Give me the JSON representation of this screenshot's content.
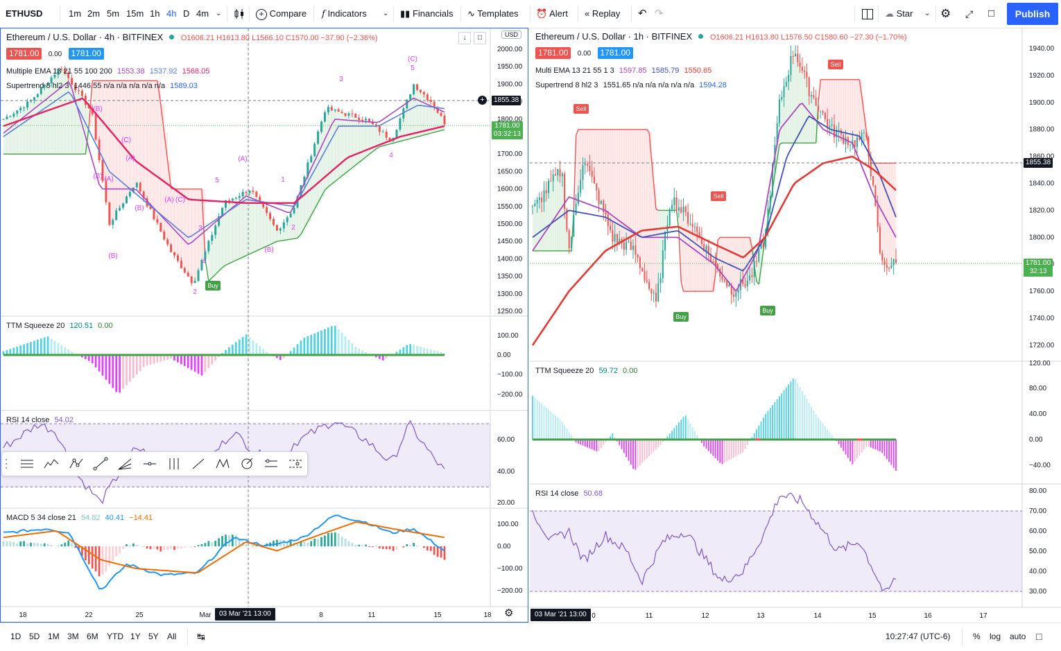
{
  "toolbar": {
    "symbol": "ETHUSD",
    "intervals": [
      "1m",
      "2m",
      "5m",
      "15m",
      "1h",
      "4h",
      "D",
      "4m"
    ],
    "active_interval": "4h",
    "compare": "Compare",
    "indicators": "Indicators",
    "financials": "Financials",
    "templates": "Templates",
    "alert": "Alert",
    "replay": "Replay",
    "star": "Star",
    "publish": "Publish"
  },
  "left_chart": {
    "title": "Ethereum / U.S. Dollar · 4h · BITFINEX",
    "ohlc": "O1606.21 H1613.80 L1566.10 C1570.00 −37.90 (−2.36%)",
    "bid": "1781.00",
    "spread": "0.00",
    "ask": "1781.00",
    "ema_label": "Multiple EMA 13 21 55 100 200",
    "ema_values": [
      "1553.38",
      "1537.92",
      "1568.05"
    ],
    "st_label": "Supertrend 8 hl2 3",
    "st_values": "1446.55  n/a  n/a  n/a  n/a  n/a",
    "st_last": "1589.03",
    "currency": "USD",
    "price_axis": [
      "2000.00",
      "1950.00",
      "1900.00",
      "1850.00",
      "1800.00",
      "1750.00",
      "1700.00",
      "1650.00",
      "1600.00",
      "1550.00",
      "1500.00",
      "1450.00",
      "1400.00",
      "1350.00",
      "1300.00",
      "1250.00"
    ],
    "crosshair_price": "1855.38",
    "last_price": "1781.00",
    "last_time": "03:32:13",
    "ttm_label": "TTM Squeeze 20",
    "ttm_values": [
      "120.51",
      "0.00"
    ],
    "ttm_axis": [
      "100.00",
      "0.00",
      "−100.00",
      "−200.00"
    ],
    "rsi_label": "RSI 14 close",
    "rsi_value": "54.02",
    "rsi_axis": [
      "60.00",
      "40.00",
      "20.00"
    ],
    "macd_label": "MACD 5 34 close 21",
    "macd_values": [
      "54.82",
      "40.41",
      "−14.41"
    ],
    "macd_axis": [
      "100.00",
      "0.00",
      "−100.00",
      "−200.00"
    ],
    "time_axis": [
      "18",
      "22",
      "25",
      "Mar",
      "8",
      "11",
      "15",
      "18"
    ],
    "crosshair_time": "03 Mar '21   13:00",
    "buy_label": "Buy",
    "wave_labels": [
      "(C)",
      "5",
      "3",
      "(A)",
      "(B)",
      "(A)",
      "(C)",
      "(B)",
      "(A)",
      "(C)",
      "(B)",
      "(B)",
      "2",
      "4",
      "1",
      "2",
      "3",
      "4",
      "5",
      "(A)",
      "(B)",
      "C"
    ]
  },
  "right_chart": {
    "title": "Ethereum / U.S. Dollar · 1h · BITFINEX",
    "ohlc": "O1606.21 H1613.80 L1576.50 C1580.60 −27.30 (−1.70%)",
    "bid": "1781.00",
    "spread": "0.00",
    "ask": "1781.00",
    "ema_label": "Multi EMA 13 21 55 1 3",
    "ema_values": [
      "1597.85",
      "1585.79",
      "1550.65"
    ],
    "st_label": "Supertrend 8 hl2 3",
    "st_values": "1551.65  n/a  n/a  n/a  n/a  n/a",
    "st_last": "1594.28",
    "price_axis": [
      "1940.00",
      "1920.00",
      "1900.00",
      "1880.00",
      "1860.00",
      "1840.00",
      "1820.00",
      "1800.00",
      "1780.00",
      "1760.00",
      "1740.00",
      "1720.00"
    ],
    "crosshair_price": "1855.38",
    "last_price": "1781.00",
    "last_time": "32:13",
    "ttm_label": "TTM Squeeze 20",
    "ttm_values": [
      "59.72",
      "0.00"
    ],
    "ttm_axis": [
      "120.00",
      "80.00",
      "40.00",
      "0.00",
      "−40.00"
    ],
    "rsi_label": "RSI 14 close",
    "rsi_value": "50.68",
    "rsi_axis": [
      "80.00",
      "70.00",
      "60.00",
      "50.00",
      "40.00",
      "30.00"
    ],
    "time_axis": [
      "0",
      "11",
      "12",
      "13",
      "14",
      "15",
      "16",
      "17"
    ],
    "crosshair_time": "03 Mar '21   13:00",
    "sell_label": "Sell",
    "buy_label": "Buy"
  },
  "bottom": {
    "ranges": [
      "1D",
      "5D",
      "1M",
      "3M",
      "6M",
      "YTD",
      "1Y",
      "5Y",
      "All"
    ],
    "clock": "10:27:47 (UTC-6)",
    "pct": "%",
    "log": "log",
    "auto": "auto"
  }
}
